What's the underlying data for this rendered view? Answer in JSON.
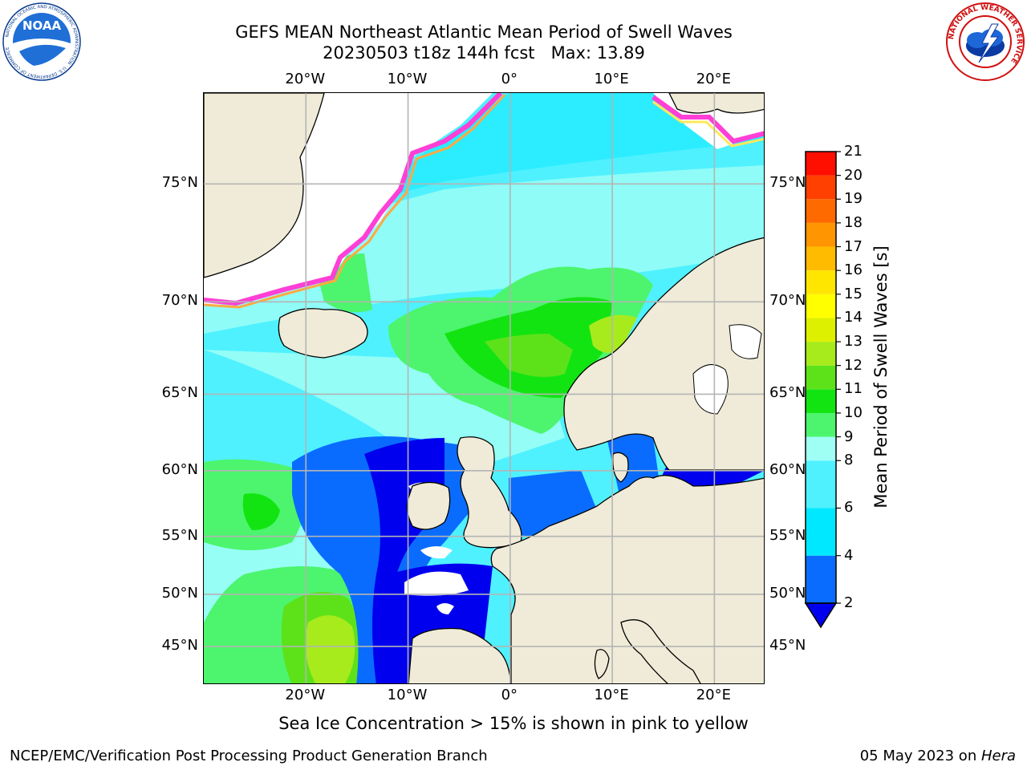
{
  "title_line1": "GEFS MEAN Northeast Atlantic Mean Period of Swell Waves",
  "title_line2": "20230503 t18z 144h fcst   Max: 13.89",
  "noaa_logo_text": "NOAA",
  "noaa_logo_ring_text": "NATIONAL OCEANIC AND ATMOSPHERIC ADMINISTRATION · U.S. DEPARTMENT OF COMMERCE",
  "nws_logo_ring_text": "NATIONAL WEATHER SERVICE",
  "axes": {
    "lon_ticks": [
      {
        "label": "20°W",
        "value": -20
      },
      {
        "label": "10°W",
        "value": -10
      },
      {
        "label": "0°",
        "value": 0
      },
      {
        "label": "10°E",
        "value": 10
      },
      {
        "label": "20°E",
        "value": 20
      }
    ],
    "lat_ticks": [
      {
        "label": "75°N",
        "value": 75
      },
      {
        "label": "70°N",
        "value": 70
      },
      {
        "label": "65°N",
        "value": 65
      },
      {
        "label": "60°N",
        "value": 60
      },
      {
        "label": "55°N",
        "value": 55
      },
      {
        "label": "50°N",
        "value": 50
      },
      {
        "label": "45°N",
        "value": 45
      }
    ],
    "lon_range": [
      -30,
      25
    ],
    "lat_range": [
      41,
      78
    ]
  },
  "colorbar": {
    "title": "Mean Period of Swell Waves [s]",
    "labels": [
      "21",
      "20",
      "19",
      "18",
      "17",
      "16",
      "15",
      "14",
      "13",
      "12",
      "11",
      "10",
      "9",
      "8",
      "6",
      "4",
      "2"
    ],
    "bins": [
      {
        "from": 2,
        "to": 4,
        "color": "#0a6cff"
      },
      {
        "from": 4,
        "to": 6,
        "color": "#00e8ff"
      },
      {
        "from": 6,
        "to": 8,
        "color": "#4ff1ff"
      },
      {
        "from": 8,
        "to": 9,
        "color": "#9ffff5"
      },
      {
        "from": 9,
        "to": 10,
        "color": "#4cf56d"
      },
      {
        "from": 10,
        "to": 11,
        "color": "#12e412"
      },
      {
        "from": 11,
        "to": 12,
        "color": "#5de21a"
      },
      {
        "from": 12,
        "to": 13,
        "color": "#a7eb1d"
      },
      {
        "from": 13,
        "to": 14,
        "color": "#ddf000"
      },
      {
        "from": 14,
        "to": 15,
        "color": "#ffff00"
      },
      {
        "from": 15,
        "to": 16,
        "color": "#ffe600"
      },
      {
        "from": 16,
        "to": 17,
        "color": "#ffbb00"
      },
      {
        "from": 17,
        "to": 18,
        "color": "#ff9500"
      },
      {
        "from": 18,
        "to": 19,
        "color": "#ff6a00"
      },
      {
        "from": 19,
        "to": 20,
        "color": "#ff4000"
      },
      {
        "from": 20,
        "to": 21,
        "color": "#ff0f00"
      }
    ],
    "under_color": "#0000ee"
  },
  "map_colors": {
    "land": "#efebd8",
    "coast": "#000000",
    "grid": "#b4b4b4",
    "ice_edge": [
      "#ff3fd6",
      "#ffaa40",
      "#ffe85a"
    ]
  },
  "footnote": "Sea Ice Concentration > 15% is shown in pink to yellow",
  "credit_left": "NCEP/EMC/Verification Post Processing Product Generation Branch",
  "credit_right_date": "05 May 2023 on ",
  "credit_right_machine": "Hera"
}
